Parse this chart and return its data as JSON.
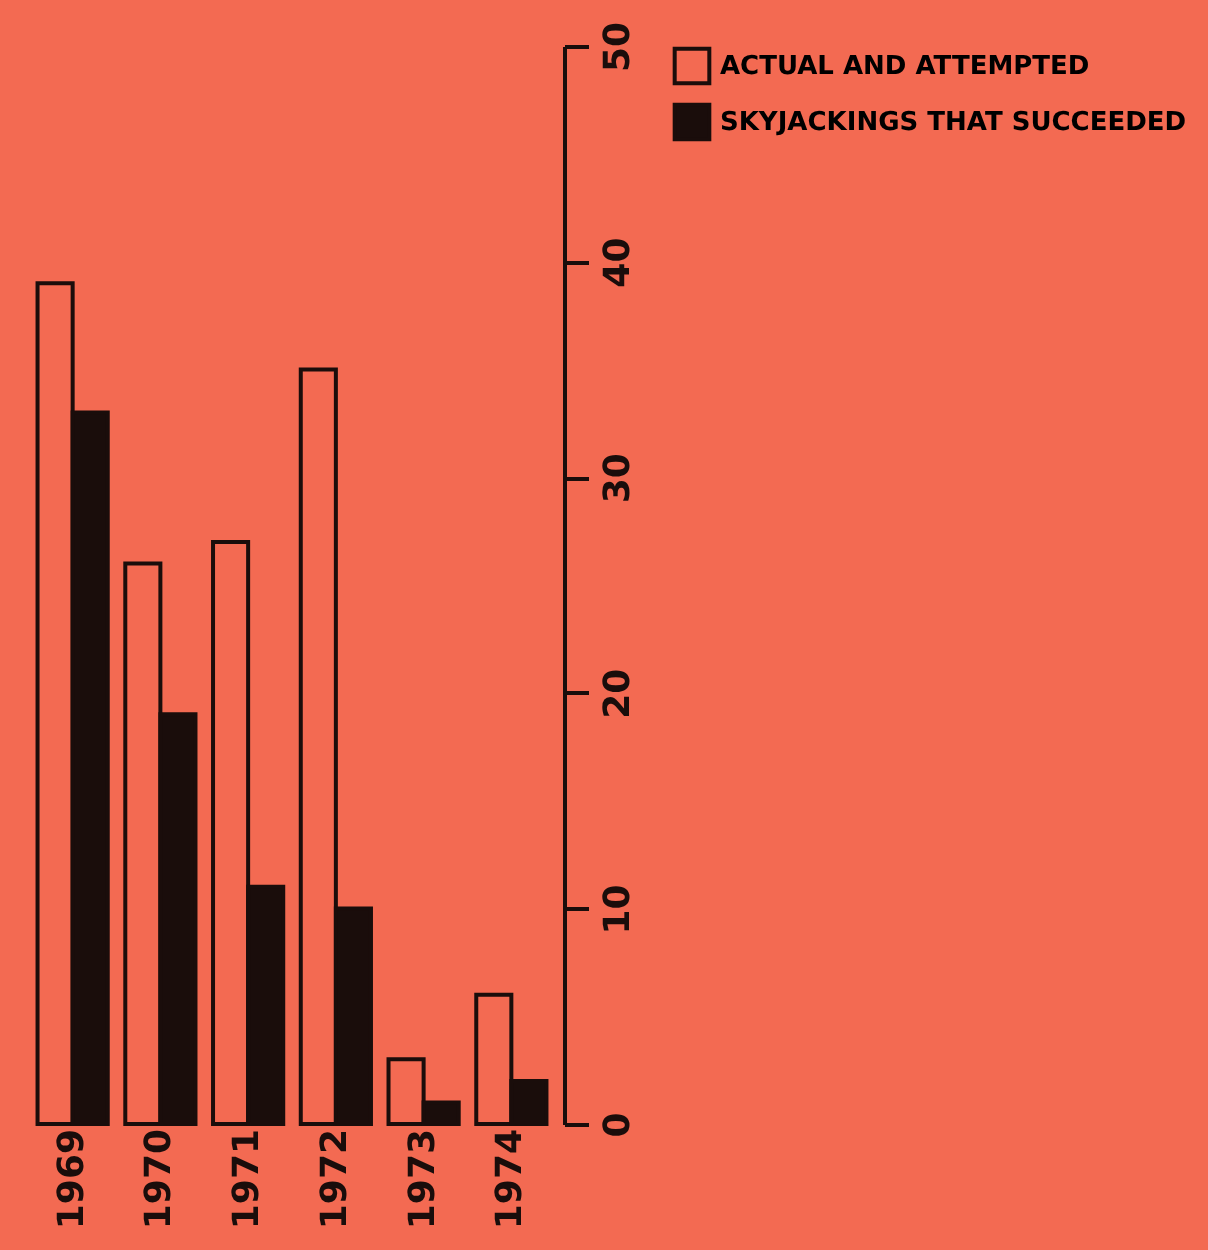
{
  "chart_data": {
    "type": "bar",
    "categories": [
      "1969",
      "1970",
      "1971",
      "1972",
      "1973",
      "1974"
    ],
    "series": [
      {
        "name": "ACTUAL AND ATTEMPTED",
        "color": "#f36a52",
        "values": [
          39,
          26,
          27,
          35,
          3,
          6
        ]
      },
      {
        "name": "SKYJACKINGS THAT SUCCEEDED",
        "color": "#1a0d0b",
        "values": [
          33,
          19,
          11,
          10,
          1,
          2
        ]
      }
    ],
    "ylim": [
      0,
      50
    ],
    "yticks": [
      0,
      10,
      20,
      30,
      40,
      50
    ],
    "grid": false,
    "legend": "right"
  }
}
